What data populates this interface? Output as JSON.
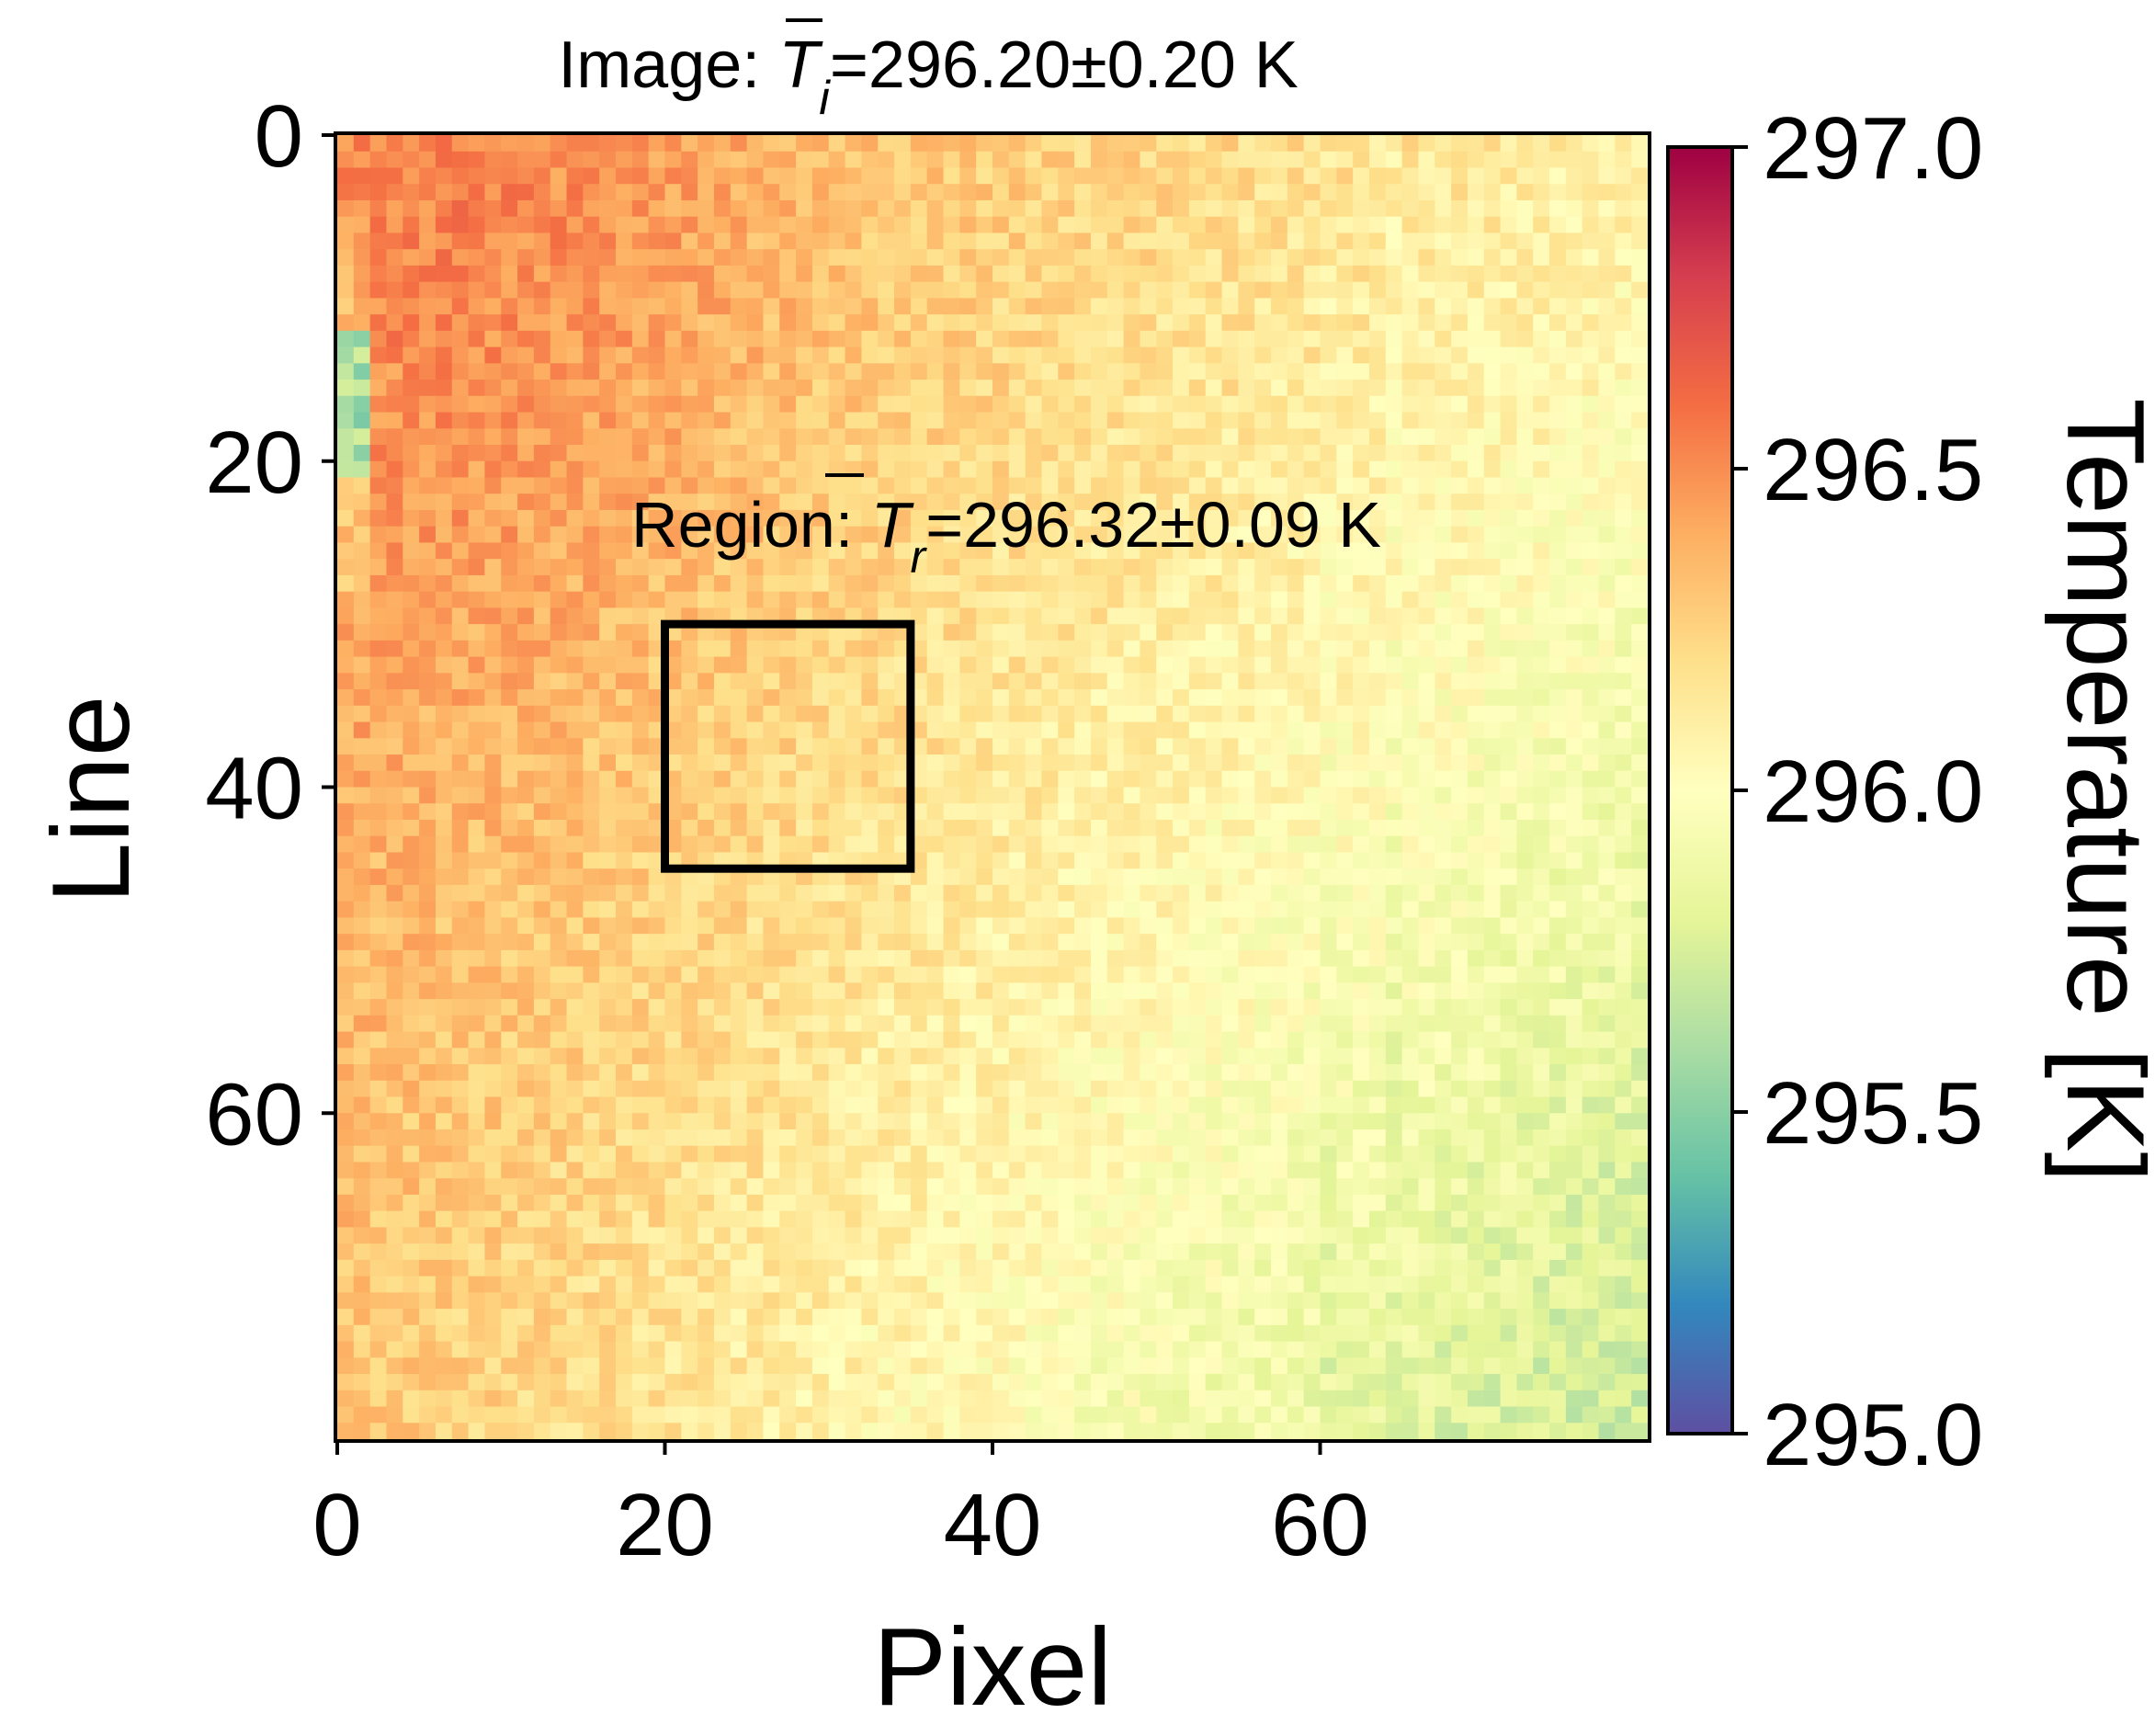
{
  "chart_data": {
    "type": "heatmap",
    "title": {
      "prefix": "Image: ",
      "symbol": "T",
      "subscript": "i",
      "value": "=296.20±0.20 K"
    },
    "xlabel": "Pixel",
    "ylabel": "Line",
    "colorbar_label": "Temperature [K]",
    "colormap": "Spectral_r",
    "x_ticks": [
      "0",
      "20",
      "40",
      "60"
    ],
    "y_ticks": [
      "0",
      "20",
      "40",
      "60"
    ],
    "colorbar_ticks": [
      "297.0",
      "296.5",
      "296.0",
      "295.5",
      "295.0"
    ],
    "xlim": [
      0,
      80
    ],
    "ylim": [
      80,
      0
    ],
    "clim": [
      295.0,
      297.0
    ],
    "grid": false,
    "grid_size": {
      "columns": 80,
      "rows": 80
    },
    "region": {
      "x_range": [
        20,
        35
      ],
      "y_range": [
        30,
        45
      ],
      "label": {
        "prefix": "Region: ",
        "symbol": "T",
        "subscript": "r",
        "value": "=296.32±0.09 K"
      }
    },
    "image_mean_K": 296.2,
    "image_std_K": 0.2,
    "region_mean_K": 296.32,
    "region_std_K": 0.09,
    "field_description_anchors_K": {
      "top_left": 296.45,
      "top_right": 296.1,
      "bottom_left": 296.3,
      "bottom_right": 295.7,
      "left_edge_cold_spot_rows": [
        12,
        20
      ],
      "left_edge_cold_spot_value": 295.6
    }
  }
}
